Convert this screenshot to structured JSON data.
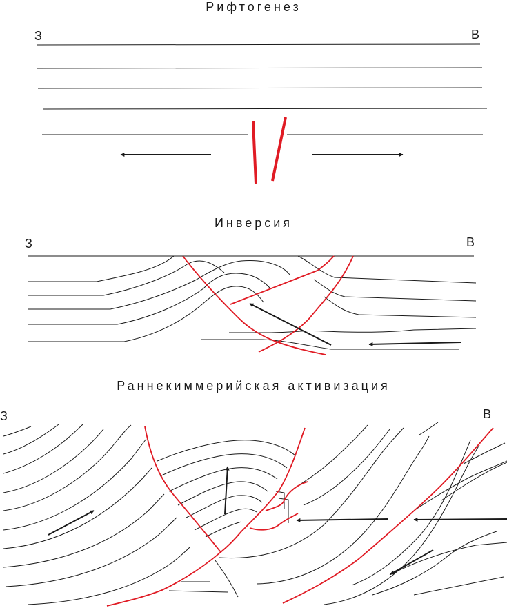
{
  "panels": [
    {
      "title": "Рифтогенез",
      "west": "З",
      "east": "В"
    },
    {
      "title": "Инверсия",
      "west": "З",
      "east": "В"
    },
    {
      "title": "Раннекиммерийская активизация",
      "west": "З",
      "east": "В"
    }
  ],
  "colors": {
    "layer_lines": "#1a1a1a",
    "faults": "#e01b24",
    "arrows": "#1a1a1a"
  }
}
